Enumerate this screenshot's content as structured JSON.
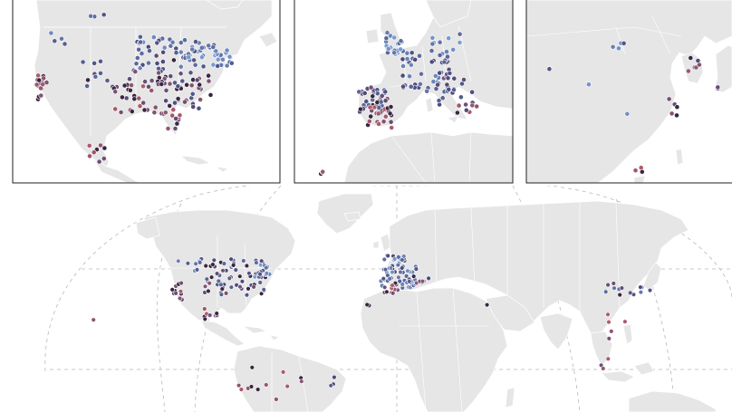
{
  "insets": [
    {
      "id": "north-america"
    },
    {
      "id": "europe"
    },
    {
      "id": "east-asia"
    }
  ],
  "colors": {
    "land": "#e6e6e6",
    "border": "#ffffff",
    "graticule": "#b9b9b9",
    "frame": "#222222",
    "scale_blue": "#7a9ed6",
    "scale_purple": "#4a4a7a",
    "scale_red": "#b05a6a",
    "scale_dark": "#3a2640"
  }
}
